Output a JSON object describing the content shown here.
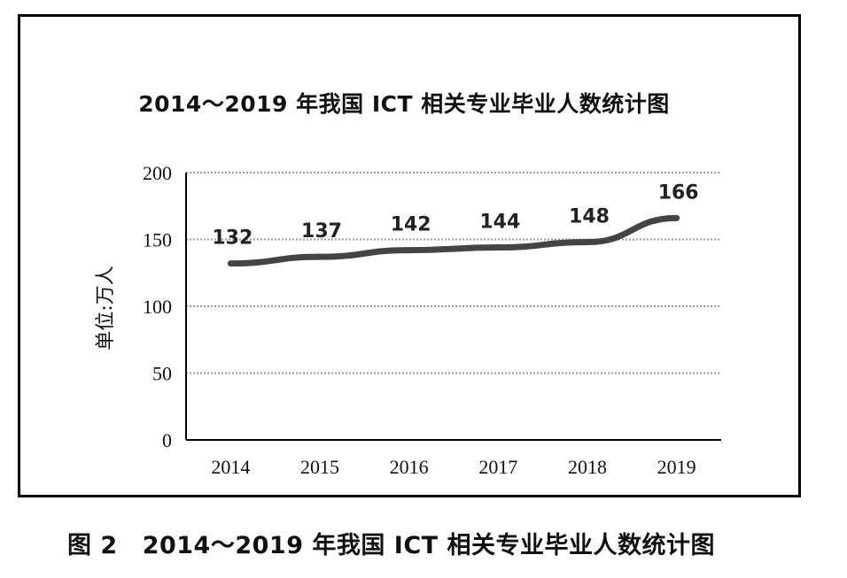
{
  "chart_data": {
    "type": "line",
    "title": "2014～2019 年我国 ICT 相关专业毕业人数统计图",
    "ylabel": "单位:万人",
    "xlabel": "",
    "categories": [
      "2014",
      "2015",
      "2016",
      "2017",
      "2018",
      "2019"
    ],
    "series": [
      {
        "values": [
          132,
          137,
          142,
          144,
          148,
          166
        ]
      }
    ],
    "data_labels": [
      "132",
      "137",
      "142",
      "144",
      "148",
      "166"
    ],
    "ylim": [
      0,
      200
    ],
    "yticks": [
      "0",
      "50",
      "100",
      "150",
      "200"
    ],
    "grid": true,
    "line_color": "#444444"
  },
  "caption": {
    "figure_number": "图 2",
    "text": "2014～2019 年我国 ICT 相关专业毕业人数统计图"
  }
}
